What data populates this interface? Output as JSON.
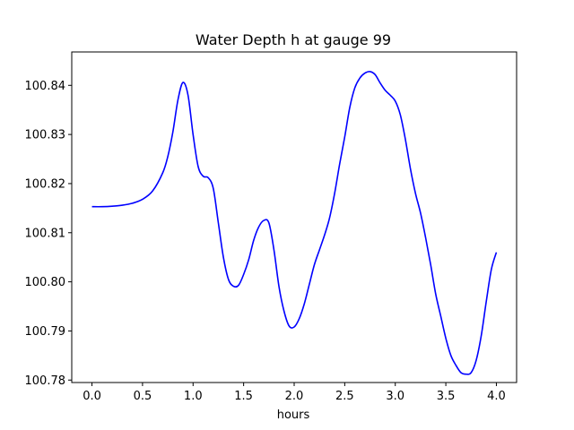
{
  "chart_data": {
    "type": "line",
    "title": "Water Depth h at gauge 99",
    "xlabel": "hours",
    "ylabel": "",
    "xlim": [
      -0.2,
      4.2
    ],
    "ylim": [
      100.7795,
      100.8468
    ],
    "grid": false,
    "x_ticks": [
      0.0,
      0.5,
      1.0,
      1.5,
      2.0,
      2.5,
      3.0,
      3.5,
      4.0
    ],
    "x_tick_labels": [
      "0.0",
      "0.5",
      "1.0",
      "1.5",
      "2.0",
      "2.5",
      "3.0",
      "3.5",
      "4.0"
    ],
    "y_ticks": [
      100.78,
      100.79,
      100.8,
      100.81,
      100.82,
      100.83,
      100.84
    ],
    "y_tick_labels": [
      "100.78",
      "100.79",
      "100.80",
      "100.81",
      "100.82",
      "100.83",
      "100.84"
    ],
    "series": [
      {
        "color": "#0000ff",
        "x": [
          0.0,
          0.1,
          0.2,
          0.3,
          0.4,
          0.5,
          0.6,
          0.7,
          0.75,
          0.8,
          0.85,
          0.9,
          0.95,
          1.0,
          1.05,
          1.1,
          1.15,
          1.2,
          1.25,
          1.3,
          1.35,
          1.4,
          1.45,
          1.5,
          1.55,
          1.6,
          1.65,
          1.7,
          1.75,
          1.8,
          1.85,
          1.9,
          1.95,
          2.0,
          2.05,
          2.1,
          2.15,
          2.2,
          2.25,
          2.3,
          2.35,
          2.4,
          2.45,
          2.5,
          2.55,
          2.6,
          2.65,
          2.7,
          2.75,
          2.8,
          2.85,
          2.9,
          2.95,
          3.0,
          3.05,
          3.1,
          3.15,
          3.2,
          3.25,
          3.3,
          3.35,
          3.4,
          3.45,
          3.5,
          3.55,
          3.6,
          3.65,
          3.7,
          3.75,
          3.8,
          3.85,
          3.9,
          3.95,
          4.0
        ],
        "y": [
          100.8153,
          100.8153,
          100.8154,
          100.8156,
          100.816,
          100.8168,
          100.8185,
          100.8222,
          100.8255,
          100.8305,
          100.837,
          100.8406,
          100.838,
          100.83,
          100.8235,
          100.8215,
          100.8212,
          100.819,
          100.812,
          100.805,
          100.8005,
          100.7991,
          100.7993,
          100.8015,
          100.8045,
          100.8085,
          100.8112,
          100.8125,
          100.812,
          100.8065,
          100.799,
          100.794,
          100.791,
          100.7908,
          100.7925,
          100.7955,
          100.7995,
          100.8035,
          100.8065,
          100.8095,
          100.813,
          100.818,
          100.824,
          100.8295,
          100.8355,
          100.8395,
          100.8415,
          100.8425,
          100.8428,
          100.8422,
          100.8405,
          100.839,
          100.838,
          100.8368,
          100.834,
          100.829,
          100.823,
          100.818,
          100.814,
          100.809,
          100.8035,
          100.7975,
          100.793,
          100.7885,
          100.785,
          100.783,
          100.7815,
          100.7812,
          100.7815,
          100.784,
          100.789,
          100.796,
          100.8025,
          100.806
        ]
      }
    ]
  }
}
